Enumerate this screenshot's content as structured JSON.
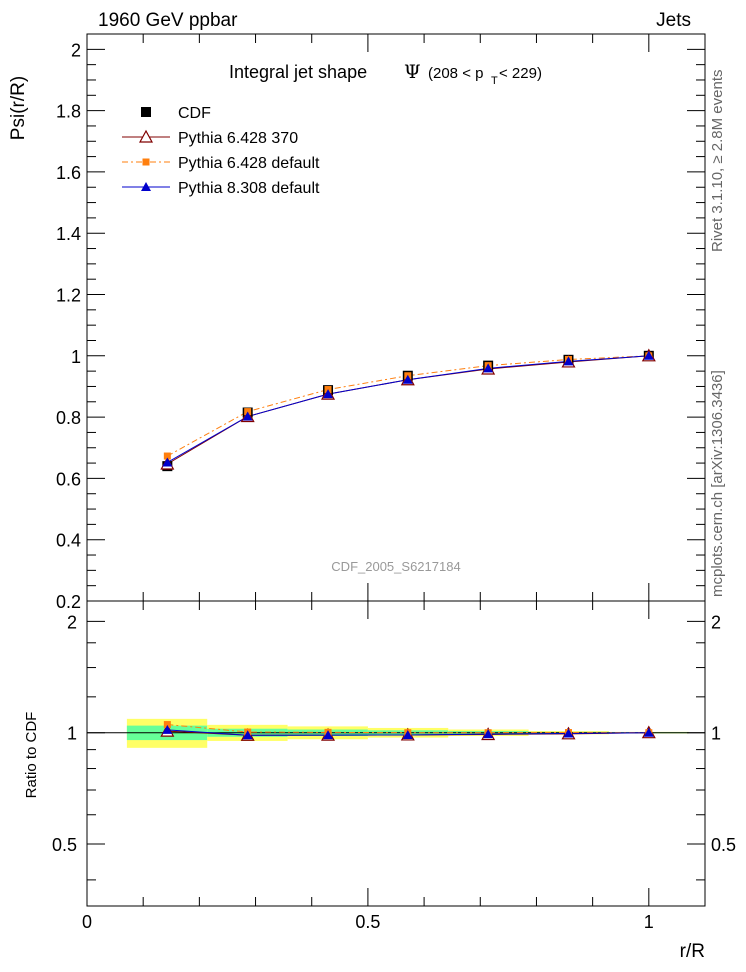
{
  "header": {
    "left": "1960 GeV ppbar",
    "right": "Jets"
  },
  "side_labels": {
    "upper": "Rivet 3.1.10, ≥ 2.8M events",
    "lower": "mcplots.cern.ch [arXiv:1306.3436]"
  },
  "watermark": "CDF_2005_S6217184",
  "chart_data": [
    {
      "type": "scatter",
      "title": {
        "main": "Integral jet shape",
        "symbol": "Ψ",
        "range_open": "(208 < p",
        "range_sub": "T",
        "range_close": " < 229)"
      },
      "xlabel": "r/R",
      "ylabel": "Psi(r/R)",
      "xlim": [
        0,
        1.1
      ],
      "ylim": [
        0.2,
        2.05
      ],
      "yticks": [
        0.2,
        0.4,
        0.6,
        0.8,
        1,
        1.2,
        1.4,
        1.6,
        1.8,
        2
      ],
      "ytick_labels": [
        "0.2",
        "0.4",
        "0.6",
        "0.8",
        "1",
        "1.2",
        "1.4",
        "1.6",
        "1.8",
        "2"
      ],
      "legend_position": "top-left",
      "x": [
        0.143,
        0.286,
        0.429,
        0.571,
        0.714,
        0.857,
        1.0
      ],
      "series": [
        {
          "name": "CDF",
          "marker": "square",
          "color": "#000000",
          "values": [
            0.64,
            0.815,
            0.888,
            0.935,
            0.968,
            0.987,
            1.0
          ]
        },
        {
          "name": "Pythia 6.428 370",
          "marker": "open-triangle",
          "color": "#800000",
          "values": [
            0.647,
            0.802,
            0.875,
            0.922,
            0.957,
            0.98,
            1.0
          ]
        },
        {
          "name": "Pythia 6.428 default",
          "marker": "small-square",
          "color": "#ff7f0e",
          "values": [
            0.673,
            0.818,
            0.89,
            0.935,
            0.968,
            0.988,
            1.0
          ]
        },
        {
          "name": "Pythia 8.308 default",
          "marker": "filled-triangle",
          "color": "#0000cc",
          "values": [
            0.652,
            0.802,
            0.875,
            0.922,
            0.959,
            0.982,
            1.0
          ]
        }
      ]
    },
    {
      "type": "scatter",
      "ylabel": "Ratio to CDF",
      "xlabel": "r/R",
      "xlim": [
        0,
        1.1
      ],
      "ylim": [
        0.34,
        2.27
      ],
      "yticks": [
        0.5,
        1,
        2
      ],
      "ytick_labels": [
        "0.5",
        "1",
        "2"
      ],
      "xticks": [
        0,
        0.5,
        1
      ],
      "xtick_labels": [
        "0",
        "0.5",
        "1"
      ],
      "x": [
        0.143,
        0.286,
        0.429,
        0.571,
        0.714,
        0.857,
        1.0
      ],
      "bin_edges": [
        0.071,
        0.214,
        0.357,
        0.5,
        0.643,
        0.786,
        0.929,
        1.071
      ],
      "uncertainty_bands": {
        "outer": [
          0.09,
          0.05,
          0.04,
          0.03,
          0.02,
          0.01,
          0.005
        ],
        "inner": [
          0.045,
          0.025,
          0.02,
          0.015,
          0.01,
          0.005,
          0.003
        ],
        "outer_color": "#ffff66",
        "inner_color": "#66ff99"
      },
      "series": [
        {
          "name": "Pythia 6.428 370",
          "color": "#800000",
          "values": [
            1.01,
            0.984,
            0.985,
            0.986,
            0.989,
            0.993,
            1.0
          ]
        },
        {
          "name": "Pythia 6.428 default",
          "color": "#ff7f0e",
          "values": [
            1.052,
            1.004,
            1.002,
            1.0,
            1.0,
            1.001,
            1.0
          ]
        },
        {
          "name": "Pythia 8.308 default",
          "color": "#0000cc",
          "values": [
            1.018,
            0.984,
            0.985,
            0.986,
            0.991,
            0.995,
            1.0
          ]
        }
      ]
    }
  ]
}
